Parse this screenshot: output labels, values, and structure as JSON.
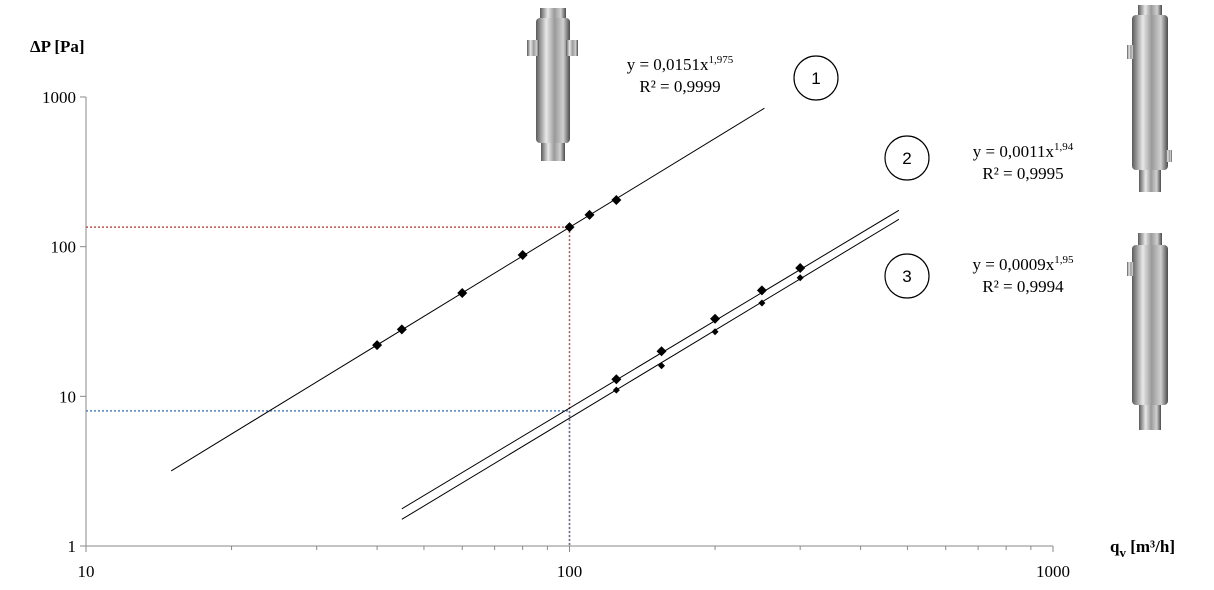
{
  "chart_data": {
    "type": "scatter",
    "log_x": true,
    "log_y": true,
    "y_label": "ΔP [Pa]",
    "x_label": {
      "main": "q",
      "sub": "v",
      "unit": " [m³/h]"
    },
    "xlim": [
      10,
      1000
    ],
    "ylim": [
      1,
      1000
    ],
    "xticks": [
      10,
      100,
      1000
    ],
    "xminorticks": [
      20,
      30,
      40,
      50,
      60,
      70,
      80,
      90,
      200,
      300,
      400,
      500,
      600,
      700,
      800,
      900
    ],
    "yticks": [
      1,
      10,
      100,
      1000
    ],
    "series": [
      {
        "name": "1",
        "color": "#000000",
        "marker_size": 5,
        "x": [
          40,
          45,
          60,
          80,
          100,
          110,
          125
        ],
        "values": [
          22,
          28,
          49,
          88,
          135,
          163,
          205
        ],
        "coefficient": 0.0151,
        "exponent": 1.975,
        "trend_x": [
          15,
          253
        ],
        "equation": "y = 0,0151x",
        "exponent_label": "1,975",
        "r2": "R² = 0,9999"
      },
      {
        "name": "2",
        "color": "#000000",
        "marker_size": 5,
        "x": [
          125,
          155,
          200,
          250,
          300
        ],
        "values": [
          13,
          20,
          33,
          51,
          72
        ],
        "coefficient": 0.0011,
        "exponent": 1.94,
        "trend_x": [
          45,
          480
        ],
        "equation": "y = 0,0011x",
        "exponent_label": "1,94",
        "r2": "R² = 0,9995"
      },
      {
        "name": "3",
        "color": "#000000",
        "marker_size": 3.5,
        "x": [
          125,
          155,
          200,
          250,
          300
        ],
        "values": [
          11,
          16,
          27,
          42,
          62
        ],
        "coefficient": 0.0009,
        "exponent": 1.95,
        "trend_x": [
          45,
          480
        ],
        "equation": "y = 0,0009x",
        "exponent_label": "1,95",
        "r2": "R² = 0,9994"
      }
    ],
    "guides": [
      {
        "x": 100,
        "y": 135,
        "color": "#c0504d"
      },
      {
        "x": 100,
        "y": 8,
        "color": "#4f81bd"
      }
    ]
  }
}
